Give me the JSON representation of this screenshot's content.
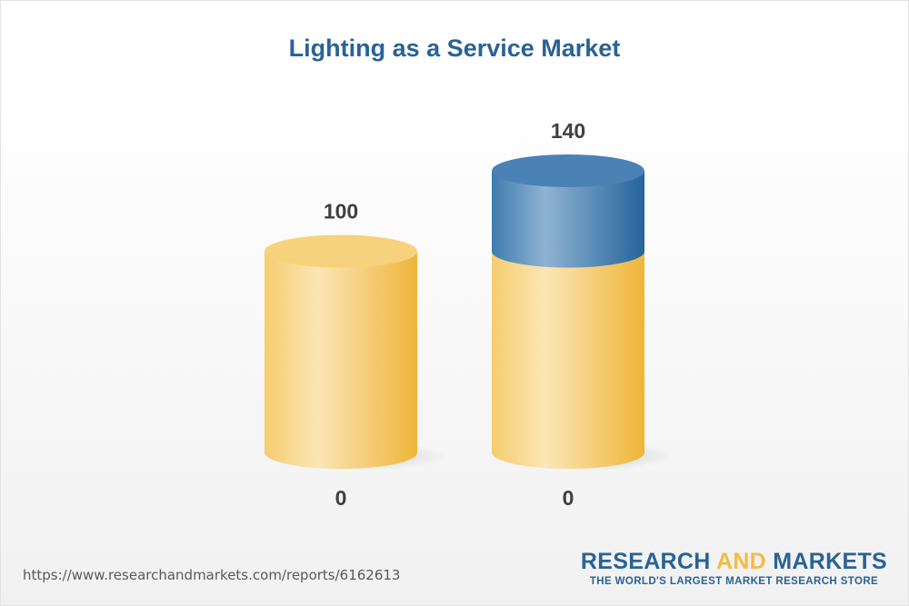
{
  "chart_data": {
    "type": "bar",
    "title": "Lighting as a Service Market",
    "categories": [
      "0",
      "0"
    ],
    "series": [
      {
        "values": [
          100,
          100
        ],
        "color": "#f3bc45"
      },
      {
        "values": [
          0,
          40
        ],
        "color": "#2f6ea4"
      }
    ],
    "data_labels": [
      "100",
      "140"
    ],
    "totals": [
      100,
      140
    ],
    "ylim": [
      0,
      140
    ],
    "style": "3d-cylinder",
    "grid": false,
    "title_color": "#2a6296"
  },
  "footer": {
    "source_url": "https://www.researchandmarkets.com/reports/6162613"
  },
  "logo": {
    "word1": "RESEARCH",
    "word2": "AND",
    "word3": "MARKETS",
    "tagline": "THE WORLD'S LARGEST MARKET RESEARCH STORE",
    "color_primary": "#2a6296",
    "color_accent": "#f3bc45"
  }
}
